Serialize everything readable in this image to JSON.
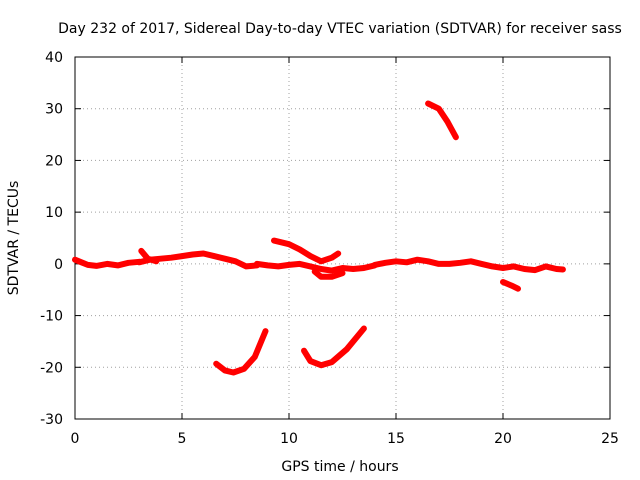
{
  "chart_data": {
    "type": "line",
    "title": "Day 232 of 2017, Sidereal Day-to-day VTEC variation (SDTVAR) for receiver sass",
    "xlabel": "GPS time / hours",
    "ylabel": "SDTVAR / TECUs",
    "xlim": [
      0,
      25
    ],
    "ylim": [
      -30,
      40
    ],
    "xticks": [
      0,
      5,
      10,
      15,
      20,
      25
    ],
    "yticks": [
      -30,
      -20,
      -10,
      0,
      10,
      20,
      30,
      40
    ],
    "xtick_labels": [
      "0",
      "5",
      "10",
      "15",
      "20",
      "25"
    ],
    "ytick_labels": [
      "-30",
      "-20",
      "-10",
      "0",
      "10",
      "20",
      "30",
      "40"
    ],
    "grid": true,
    "legend": "none",
    "color": "#ff0000",
    "series": [
      {
        "name": "band-0-3h",
        "values": [
          [
            0.0,
            0.8
          ],
          [
            0.3,
            0.3
          ],
          [
            0.6,
            -0.2
          ],
          [
            1.0,
            -0.4
          ],
          [
            1.5,
            0.0
          ],
          [
            2.0,
            -0.3
          ],
          [
            2.5,
            0.2
          ],
          [
            3.0,
            0.4
          ]
        ]
      },
      {
        "name": "band-3-6h",
        "values": [
          [
            3.0,
            0.3
          ],
          [
            3.5,
            0.8
          ],
          [
            4.0,
            1.0
          ],
          [
            4.5,
            1.2
          ],
          [
            5.0,
            1.5
          ],
          [
            5.5,
            1.8
          ],
          [
            6.0,
            2.0
          ],
          [
            6.5,
            1.5
          ],
          [
            7.0,
            1.0
          ],
          [
            7.5,
            0.5
          ],
          [
            8.0,
            -0.5
          ],
          [
            8.5,
            -0.3
          ]
        ]
      },
      {
        "name": "band-8-13h",
        "values": [
          [
            8.5,
            0.0
          ],
          [
            9.0,
            -0.3
          ],
          [
            9.5,
            -0.5
          ],
          [
            10.0,
            -0.2
          ],
          [
            10.5,
            0.0
          ],
          [
            11.0,
            -0.5
          ],
          [
            11.5,
            -1.0
          ],
          [
            12.0,
            -1.3
          ],
          [
            12.5,
            -0.8
          ],
          [
            13.0,
            -1.0
          ],
          [
            13.5,
            -0.8
          ],
          [
            14.0,
            -0.3
          ]
        ]
      },
      {
        "name": "band-14-23h",
        "values": [
          [
            14.0,
            -0.2
          ],
          [
            14.5,
            0.2
          ],
          [
            15.0,
            0.5
          ],
          [
            15.5,
            0.3
          ],
          [
            16.0,
            0.8
          ],
          [
            16.5,
            0.5
          ],
          [
            17.0,
            0.0
          ],
          [
            17.5,
            0.0
          ],
          [
            18.0,
            0.2
          ],
          [
            18.5,
            0.5
          ],
          [
            19.0,
            0.0
          ],
          [
            19.5,
            -0.5
          ],
          [
            20.0,
            -0.8
          ],
          [
            20.5,
            -0.5
          ],
          [
            21.0,
            -1.0
          ],
          [
            21.5,
            -1.2
          ],
          [
            22.0,
            -0.5
          ],
          [
            22.5,
            -1.0
          ],
          [
            22.8,
            -1.1
          ]
        ]
      },
      {
        "name": "early-spike",
        "values": [
          [
            3.1,
            2.5
          ],
          [
            3.4,
            1.0
          ],
          [
            3.8,
            0.5
          ]
        ]
      },
      {
        "name": "up-9-12h",
        "values": [
          [
            9.3,
            4.5
          ],
          [
            10.0,
            3.8
          ],
          [
            10.5,
            2.8
          ],
          [
            11.0,
            1.5
          ],
          [
            11.5,
            0.5
          ],
          [
            12.0,
            1.2
          ],
          [
            12.3,
            2.0
          ]
        ]
      },
      {
        "name": "dip-11-12h",
        "values": [
          [
            11.2,
            -1.5
          ],
          [
            11.5,
            -2.5
          ],
          [
            12.0,
            -2.5
          ],
          [
            12.5,
            -1.8
          ]
        ]
      },
      {
        "name": "high-16-18h",
        "values": [
          [
            16.5,
            31.0
          ],
          [
            17.0,
            30.0
          ],
          [
            17.4,
            27.5
          ],
          [
            17.8,
            24.5
          ]
        ]
      },
      {
        "name": "low-6-9h",
        "values": [
          [
            6.6,
            -19.3
          ],
          [
            7.0,
            -20.6
          ],
          [
            7.4,
            -21.0
          ],
          [
            7.9,
            -20.3
          ],
          [
            8.4,
            -18.0
          ],
          [
            8.9,
            -13.0
          ]
        ]
      },
      {
        "name": "low-10-13h",
        "values": [
          [
            10.7,
            -16.8
          ],
          [
            11.0,
            -18.8
          ],
          [
            11.5,
            -19.6
          ],
          [
            12.0,
            -19.0
          ],
          [
            12.7,
            -16.5
          ],
          [
            13.5,
            -12.5
          ]
        ]
      },
      {
        "name": "neg-20-21h",
        "values": [
          [
            20.0,
            -3.5
          ],
          [
            20.4,
            -4.2
          ],
          [
            20.7,
            -4.8
          ]
        ]
      }
    ]
  }
}
